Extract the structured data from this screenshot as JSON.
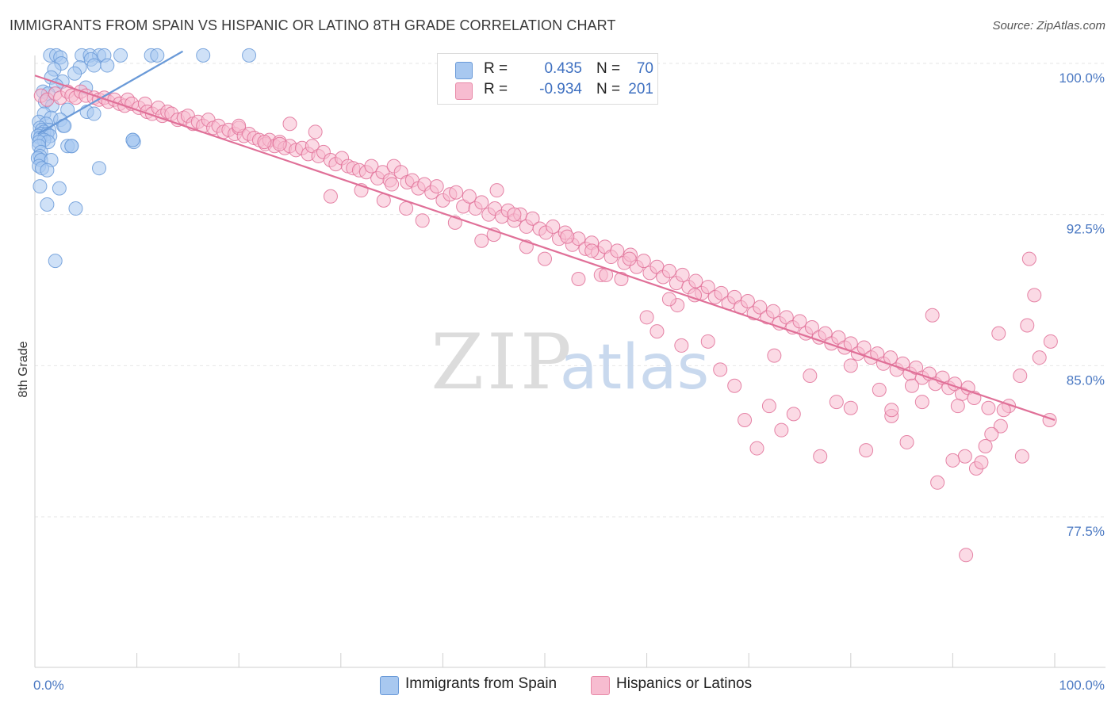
{
  "title": "IMMIGRANTS FROM SPAIN VS HISPANIC OR LATINO 8TH GRADE CORRELATION CHART",
  "source": "Source: ZipAtlas.com",
  "watermark": {
    "zip": "ZIP",
    "atlas": "atlas"
  },
  "legend": {
    "rows": [
      {
        "r_label": "R =",
        "r_value": "0.435",
        "n_label": "N =",
        "n_value": "70",
        "color": "#a8c8f0",
        "border": "#6a9ad8"
      },
      {
        "r_label": "R =",
        "r_value": "-0.934",
        "n_label": "N =",
        "n_value": "201",
        "color": "#f7bcd0",
        "border": "#e88aa8"
      }
    ]
  },
  "bottom_legend": [
    {
      "label": "Immigrants from Spain",
      "color": "#a8c8f0",
      "border": "#6a9ad8"
    },
    {
      "label": "Hispanics or Latinos",
      "color": "#f7bcd0",
      "border": "#e88aa8"
    }
  ],
  "chart_data": {
    "type": "scatter",
    "xlabel": "",
    "ylabel": "8th Grade",
    "xlim": [
      0,
      100
    ],
    "ylim": [
      70.5,
      100.6
    ],
    "x_tick_labels": [
      "0.0%",
      "100.0%"
    ],
    "y_ticks": [
      100.0,
      92.5,
      85.0,
      77.5
    ],
    "y_tick_labels": [
      "100.0%",
      "92.5%",
      "85.0%",
      "77.5%"
    ],
    "grid": true,
    "legend_placement": "top-center",
    "series": [
      {
        "name": "Immigrants from Spain",
        "color": "#6a9ad8",
        "fill": "#a8c8f0",
        "trend": {
          "x": [
            0.3,
            14.5
          ],
          "y": [
            96.5,
            100.6
          ]
        },
        "points": [
          [
            1.5,
            100.4
          ],
          [
            2.1,
            100.4
          ],
          [
            2.5,
            100.3
          ],
          [
            4.6,
            100.4
          ],
          [
            5.4,
            100.4
          ],
          [
            6.3,
            100.4
          ],
          [
            6.8,
            100.4
          ],
          [
            8.4,
            100.4
          ],
          [
            11.4,
            100.4
          ],
          [
            12.0,
            100.4
          ],
          [
            16.5,
            100.4
          ],
          [
            21.0,
            100.4
          ],
          [
            2.6,
            100.0
          ],
          [
            4.4,
            99.8
          ],
          [
            5.5,
            100.2
          ],
          [
            5.8,
            99.9
          ],
          [
            7.1,
            99.9
          ],
          [
            1.9,
            99.7
          ],
          [
            3.9,
            99.5
          ],
          [
            1.6,
            99.3
          ],
          [
            2.7,
            99.1
          ],
          [
            2.1,
            98.9
          ],
          [
            5.0,
            98.8
          ],
          [
            0.8,
            98.6
          ],
          [
            1.3,
            98.5
          ],
          [
            1.0,
            98.1
          ],
          [
            1.7,
            97.9
          ],
          [
            3.2,
            97.7
          ],
          [
            5.1,
            97.6
          ],
          [
            5.8,
            97.5
          ],
          [
            0.9,
            97.5
          ],
          [
            1.6,
            97.3
          ],
          [
            2.5,
            97.2
          ],
          [
            0.4,
            97.1
          ],
          [
            1.1,
            97.0
          ],
          [
            2.8,
            96.9
          ],
          [
            2.9,
            96.9
          ],
          [
            0.5,
            96.8
          ],
          [
            0.7,
            96.7
          ],
          [
            1.4,
            96.7
          ],
          [
            0.9,
            96.6
          ],
          [
            0.6,
            96.5
          ],
          [
            1.2,
            96.5
          ],
          [
            1.5,
            96.4
          ],
          [
            0.3,
            96.4
          ],
          [
            0.5,
            96.3
          ],
          [
            0.9,
            96.2
          ],
          [
            1.3,
            96.1
          ],
          [
            0.4,
            96.1
          ],
          [
            9.6,
            96.2
          ],
          [
            9.7,
            96.1
          ],
          [
            0.4,
            95.9
          ],
          [
            3.2,
            95.9
          ],
          [
            3.6,
            95.9
          ],
          [
            0.6,
            95.6
          ],
          [
            0.5,
            95.4
          ],
          [
            0.3,
            95.3
          ],
          [
            0.6,
            95.2
          ],
          [
            1.6,
            95.2
          ],
          [
            0.4,
            94.9
          ],
          [
            0.7,
            94.8
          ],
          [
            1.2,
            94.7
          ],
          [
            6.3,
            94.8
          ],
          [
            0.5,
            93.9
          ],
          [
            2.4,
            93.8
          ],
          [
            1.2,
            93.0
          ],
          [
            4.0,
            92.8
          ],
          [
            2.0,
            90.2
          ],
          [
            3.6,
            95.9
          ],
          [
            9.6,
            96.2
          ]
        ]
      },
      {
        "name": "Hispanics or Latinos",
        "color": "#e07098",
        "fill": "#f7bcd0",
        "trend": {
          "x": [
            0,
            100
          ],
          "y": [
            99.4,
            82.3
          ]
        },
        "points": [
          [
            0.6,
            98.4
          ],
          [
            1.2,
            98.2
          ],
          [
            2.0,
            98.5
          ],
          [
            2.5,
            98.3
          ],
          [
            3.2,
            98.6
          ],
          [
            3.6,
            98.4
          ],
          [
            4.0,
            98.3
          ],
          [
            4.5,
            98.6
          ],
          [
            5.0,
            98.4
          ],
          [
            5.8,
            98.3
          ],
          [
            6.3,
            98.2
          ],
          [
            6.8,
            98.3
          ],
          [
            7.2,
            98.1
          ],
          [
            7.8,
            98.2
          ],
          [
            8.3,
            98.0
          ],
          [
            8.8,
            97.9
          ],
          [
            9.1,
            98.2
          ],
          [
            9.5,
            98.0
          ],
          [
            10.2,
            97.8
          ],
          [
            10.8,
            98.0
          ],
          [
            11.0,
            97.6
          ],
          [
            11.5,
            97.5
          ],
          [
            12.1,
            97.8
          ],
          [
            12.5,
            97.4
          ],
          [
            13.0,
            97.6
          ],
          [
            13.4,
            97.5
          ],
          [
            14.0,
            97.2
          ],
          [
            14.6,
            97.3
          ],
          [
            15.0,
            97.4
          ],
          [
            15.5,
            97.0
          ],
          [
            16.0,
            97.1
          ],
          [
            16.5,
            96.9
          ],
          [
            17.0,
            97.2
          ],
          [
            17.5,
            96.8
          ],
          [
            18.0,
            96.9
          ],
          [
            18.5,
            96.6
          ],
          [
            19.0,
            96.7
          ],
          [
            19.6,
            96.5
          ],
          [
            20.0,
            96.8
          ],
          [
            20.5,
            96.4
          ],
          [
            21.0,
            96.5
          ],
          [
            21.5,
            96.3
          ],
          [
            22.0,
            96.2
          ],
          [
            22.6,
            96.0
          ],
          [
            23.0,
            96.2
          ],
          [
            23.5,
            95.9
          ],
          [
            24.0,
            96.1
          ],
          [
            24.5,
            95.8
          ],
          [
            25.0,
            95.9
          ],
          [
            25.6,
            95.7
          ],
          [
            26.2,
            95.8
          ],
          [
            26.8,
            95.5
          ],
          [
            27.2,
            95.9
          ],
          [
            27.8,
            95.4
          ],
          [
            28.3,
            95.6
          ],
          [
            29.0,
            95.2
          ],
          [
            29.5,
            95.0
          ],
          [
            30.1,
            95.3
          ],
          [
            30.7,
            94.9
          ],
          [
            31.2,
            94.8
          ],
          [
            31.8,
            94.7
          ],
          [
            32.5,
            94.6
          ],
          [
            33.0,
            94.9
          ],
          [
            33.6,
            94.3
          ],
          [
            34.1,
            94.6
          ],
          [
            34.8,
            94.2
          ],
          [
            35.2,
            94.9
          ],
          [
            35.9,
            94.6
          ],
          [
            36.5,
            94.1
          ],
          [
            37.0,
            94.2
          ],
          [
            37.6,
            93.8
          ],
          [
            38.2,
            94.0
          ],
          [
            38.9,
            93.6
          ],
          [
            39.4,
            93.9
          ],
          [
            40.0,
            93.2
          ],
          [
            40.7,
            93.5
          ],
          [
            41.3,
            93.6
          ],
          [
            42.0,
            92.9
          ],
          [
            42.6,
            93.4
          ],
          [
            43.2,
            92.8
          ],
          [
            43.8,
            93.1
          ],
          [
            44.5,
            92.5
          ],
          [
            45.1,
            92.8
          ],
          [
            45.8,
            92.4
          ],
          [
            46.4,
            92.7
          ],
          [
            47.0,
            92.2
          ],
          [
            47.6,
            92.5
          ],
          [
            48.2,
            91.9
          ],
          [
            48.8,
            92.3
          ],
          [
            49.5,
            91.8
          ],
          [
            50.1,
            91.6
          ],
          [
            50.8,
            91.9
          ],
          [
            51.4,
            91.3
          ],
          [
            52.0,
            91.6
          ],
          [
            52.7,
            91.0
          ],
          [
            53.3,
            91.3
          ],
          [
            54.0,
            90.8
          ],
          [
            54.6,
            91.1
          ],
          [
            55.2,
            90.6
          ],
          [
            55.9,
            90.9
          ],
          [
            56.5,
            90.4
          ],
          [
            57.1,
            90.7
          ],
          [
            57.8,
            90.1
          ],
          [
            58.4,
            90.5
          ],
          [
            59.0,
            89.9
          ],
          [
            59.7,
            90.2
          ],
          [
            60.3,
            89.6
          ],
          [
            61.0,
            89.9
          ],
          [
            61.6,
            89.4
          ],
          [
            62.2,
            89.7
          ],
          [
            62.9,
            89.1
          ],
          [
            63.5,
            89.5
          ],
          [
            64.1,
            88.9
          ],
          [
            64.8,
            89.2
          ],
          [
            65.4,
            88.6
          ],
          [
            66.0,
            88.9
          ],
          [
            66.7,
            88.4
          ],
          [
            67.3,
            88.6
          ],
          [
            68.0,
            88.1
          ],
          [
            68.6,
            88.4
          ],
          [
            69.2,
            87.9
          ],
          [
            69.9,
            88.2
          ],
          [
            70.5,
            87.6
          ],
          [
            71.1,
            87.9
          ],
          [
            71.8,
            87.4
          ],
          [
            72.4,
            87.7
          ],
          [
            73.0,
            87.1
          ],
          [
            73.7,
            87.4
          ],
          [
            74.3,
            86.9
          ],
          [
            75.0,
            87.2
          ],
          [
            75.6,
            86.6
          ],
          [
            76.2,
            86.9
          ],
          [
            76.9,
            86.4
          ],
          [
            77.5,
            86.6
          ],
          [
            78.1,
            86.1
          ],
          [
            78.8,
            86.4
          ],
          [
            79.4,
            85.9
          ],
          [
            80.0,
            86.1
          ],
          [
            80.7,
            85.6
          ],
          [
            81.3,
            85.9
          ],
          [
            82.0,
            85.4
          ],
          [
            82.6,
            85.6
          ],
          [
            83.2,
            85.1
          ],
          [
            83.9,
            85.4
          ],
          [
            84.5,
            84.8
          ],
          [
            85.1,
            85.1
          ],
          [
            85.8,
            84.6
          ],
          [
            86.4,
            84.9
          ],
          [
            87.0,
            84.4
          ],
          [
            87.7,
            84.6
          ],
          [
            88.3,
            84.1
          ],
          [
            89.0,
            84.4
          ],
          [
            89.6,
            83.9
          ],
          [
            90.2,
            84.1
          ],
          [
            90.9,
            83.6
          ],
          [
            91.5,
            83.9
          ],
          [
            92.1,
            83.4
          ],
          [
            24.0,
            96.0
          ],
          [
            35.0,
            94.0
          ],
          [
            45.0,
            91.5
          ],
          [
            55.5,
            89.5
          ],
          [
            63.0,
            88.0
          ],
          [
            72.5,
            85.5
          ],
          [
            80.0,
            85.0
          ],
          [
            88.0,
            87.5
          ],
          [
            94.5,
            86.6
          ],
          [
            98.0,
            88.5
          ],
          [
            99.6,
            86.2
          ],
          [
            98.5,
            85.4
          ],
          [
            97.5,
            90.3
          ],
          [
            96.6,
            84.5
          ],
          [
            95.5,
            83.0
          ],
          [
            94.7,
            82.0
          ],
          [
            93.8,
            81.6
          ],
          [
            93.2,
            81.0
          ],
          [
            92.3,
            79.9
          ],
          [
            91.2,
            80.5
          ],
          [
            90.0,
            80.3
          ],
          [
            88.5,
            79.2
          ],
          [
            87.0,
            83.2
          ],
          [
            85.5,
            81.2
          ],
          [
            84.0,
            82.5
          ],
          [
            82.8,
            83.8
          ],
          [
            81.5,
            80.8
          ],
          [
            80.0,
            82.9
          ],
          [
            78.6,
            83.2
          ],
          [
            77.0,
            80.5
          ],
          [
            76.0,
            84.5
          ],
          [
            74.4,
            82.6
          ],
          [
            73.2,
            81.8
          ],
          [
            72.0,
            83.0
          ],
          [
            70.8,
            80.9
          ],
          [
            69.6,
            82.3
          ],
          [
            68.6,
            84.0
          ],
          [
            67.2,
            84.8
          ],
          [
            66.0,
            86.2
          ],
          [
            64.7,
            88.5
          ],
          [
            63.4,
            86.0
          ],
          [
            62.2,
            88.3
          ],
          [
            61.0,
            86.7
          ],
          [
            60.0,
            87.4
          ],
          [
            58.3,
            90.3
          ],
          [
            57.5,
            89.3
          ],
          [
            56.0,
            89.5
          ],
          [
            54.6,
            90.7
          ],
          [
            53.3,
            89.3
          ],
          [
            52.2,
            91.4
          ],
          [
            50.0,
            90.3
          ],
          [
            48.2,
            90.9
          ],
          [
            47.0,
            92.5
          ],
          [
            45.3,
            93.7
          ],
          [
            43.8,
            91.2
          ],
          [
            41.2,
            92.1
          ],
          [
            38.0,
            92.2
          ],
          [
            36.4,
            92.8
          ],
          [
            34.2,
            93.2
          ],
          [
            32.0,
            93.7
          ],
          [
            29.0,
            93.4
          ],
          [
            27.5,
            96.6
          ],
          [
            25.0,
            97.0
          ],
          [
            22.5,
            96.1
          ],
          [
            20.0,
            96.9
          ],
          [
            90.5,
            83.0
          ],
          [
            92.8,
            80.2
          ],
          [
            95.0,
            82.8
          ],
          [
            96.8,
            80.5
          ],
          [
            97.3,
            87.0
          ],
          [
            84.0,
            82.8
          ],
          [
            86.0,
            84.0
          ],
          [
            91.3,
            75.6
          ],
          [
            99.5,
            82.3
          ],
          [
            93.5,
            82.9
          ]
        ]
      }
    ]
  }
}
